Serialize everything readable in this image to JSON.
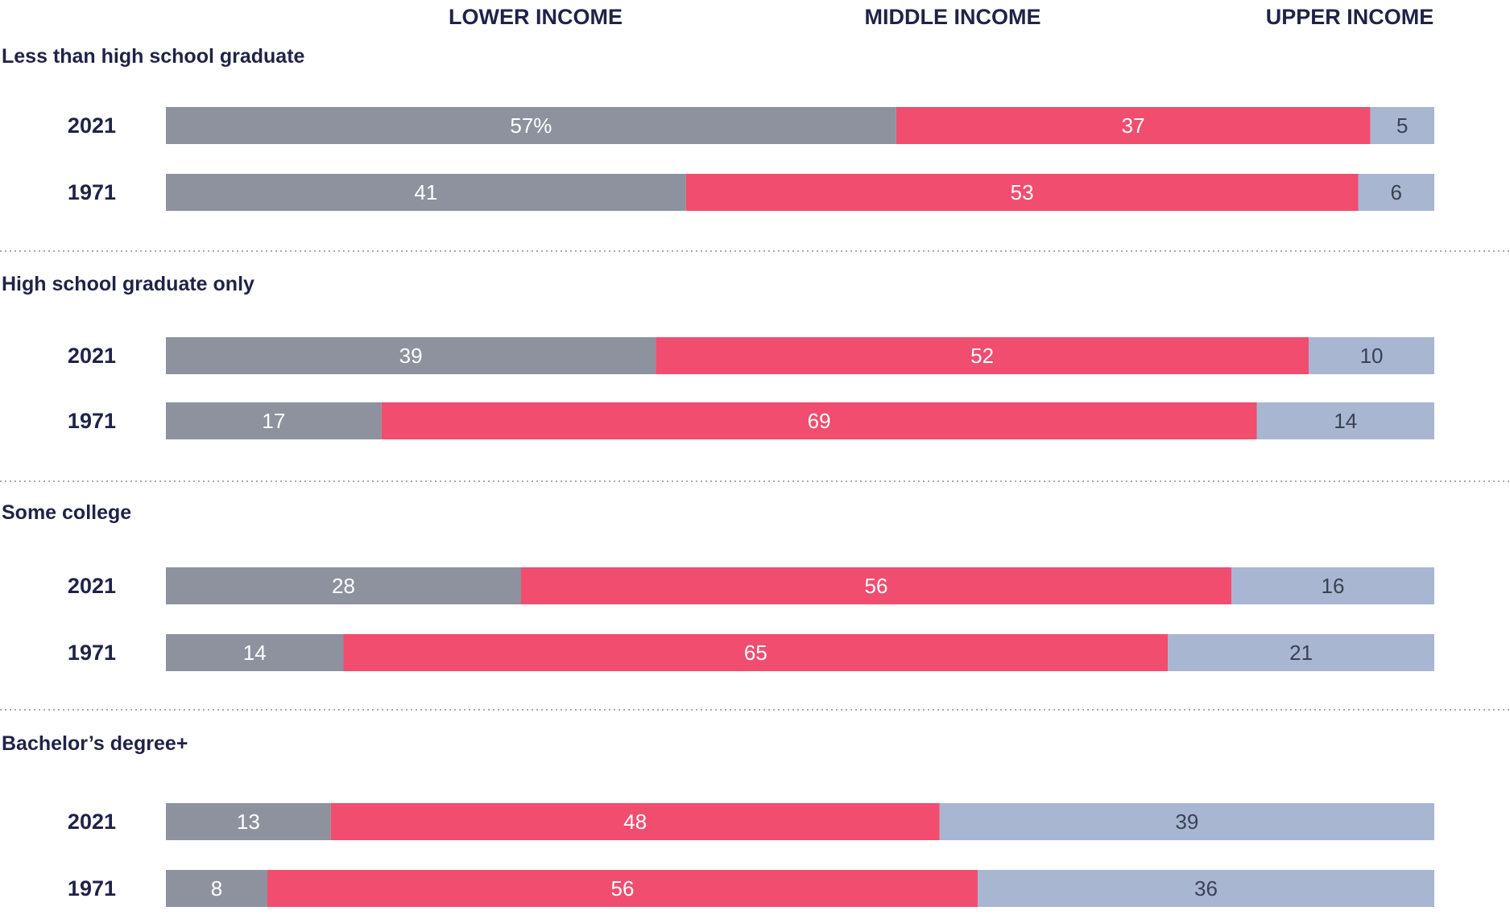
{
  "chart_data": {
    "type": "bar",
    "orientation": "horizontal",
    "stacked": true,
    "xlim": [
      0,
      100
    ],
    "legend_placement": "top",
    "series": [
      {
        "name": "LOWER INCOME",
        "color": "#8d929e",
        "label_color": "#ffffff"
      },
      {
        "name": "MIDDLE INCOME",
        "color": "#f04d6f",
        "label_color": "#ffffff"
      },
      {
        "name": "UPPER INCOME",
        "color": "#a8b6d2",
        "label_color": "#3b4152"
      }
    ],
    "groups": [
      {
        "title": "Less than high school graduate",
        "rows": [
          {
            "year": "2021",
            "values": [
              57,
              37,
              5
            ],
            "labels": [
              "57%",
              "37",
              "5"
            ]
          },
          {
            "year": "1971",
            "values": [
              41,
              53,
              6
            ],
            "labels": [
              "41",
              "53",
              "6"
            ]
          }
        ]
      },
      {
        "title": "High school graduate only",
        "rows": [
          {
            "year": "2021",
            "values": [
              39,
              52,
              10
            ],
            "labels": [
              "39",
              "52",
              "10"
            ]
          },
          {
            "year": "1971",
            "values": [
              17,
              69,
              14
            ],
            "labels": [
              "17",
              "69",
              "14"
            ]
          }
        ]
      },
      {
        "title": "Some college",
        "rows": [
          {
            "year": "2021",
            "values": [
              28,
              56,
              16
            ],
            "labels": [
              "28",
              "56",
              "16"
            ]
          },
          {
            "year": "1971",
            "values": [
              14,
              65,
              21
            ],
            "labels": [
              "14",
              "65",
              "21"
            ]
          }
        ]
      },
      {
        "title": "Bachelor’s degree+",
        "rows": [
          {
            "year": "2021",
            "values": [
              13,
              48,
              39
            ],
            "labels": [
              "13",
              "48",
              "39"
            ]
          },
          {
            "year": "1971",
            "values": [
              8,
              56,
              36
            ],
            "labels": [
              "8",
              "56",
              "36"
            ]
          }
        ]
      }
    ]
  }
}
